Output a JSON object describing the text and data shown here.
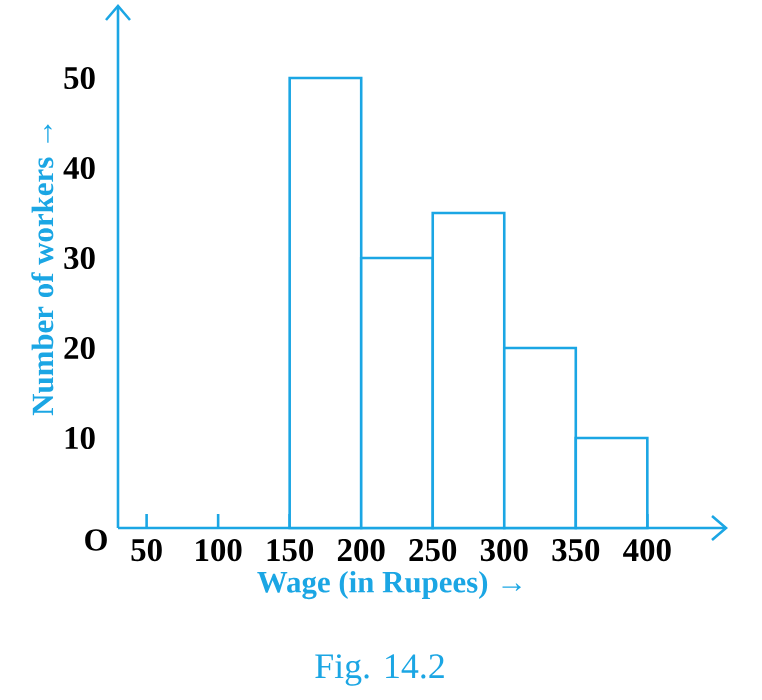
{
  "chart_data": {
    "type": "histogram",
    "xlabel": "Wage (in Rupees) →",
    "ylabel": "Number of workers →",
    "bins": [
      150,
      200,
      250,
      300,
      350,
      400
    ],
    "values": [
      50,
      30,
      35,
      20,
      10
    ],
    "color": "#1ba6e4",
    "xlim": [
      30,
      455
    ],
    "ylim": [
      0,
      58
    ],
    "xticks": [
      50,
      100,
      150,
      200,
      250,
      300,
      350,
      400
    ],
    "yticks": [
      10,
      20,
      30,
      40,
      50
    ],
    "grid": false,
    "annotations": [
      "O",
      "Fig. 14.2"
    ]
  }
}
